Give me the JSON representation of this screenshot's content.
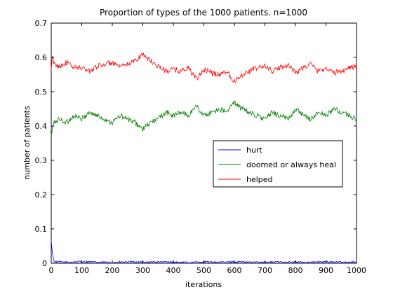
{
  "chart_data": {
    "type": "line",
    "title": "Proportion of types of the 1000 patients. n=1000",
    "xlabel": "iterations",
    "ylabel": "number of patients",
    "xlim": [
      0,
      1000
    ],
    "ylim": [
      0,
      0.7
    ],
    "xticks": [
      "0",
      "100",
      "200",
      "300",
      "400",
      "500",
      "600",
      "700",
      "800",
      "900",
      "1000"
    ],
    "yticks": [
      "0",
      "0.1",
      "0.2",
      "0.3",
      "0.4",
      "0.5",
      "0.6",
      "0.7"
    ],
    "grid": false,
    "legend_position": "center-right",
    "series": [
      {
        "name": "hurt",
        "color": "#0000ff",
        "x": [
          0,
          5,
          10,
          20,
          50,
          100,
          150,
          200,
          250,
          300,
          350,
          400,
          450,
          500,
          550,
          600,
          650,
          700,
          750,
          800,
          850,
          900,
          950,
          1000
        ],
        "values": [
          0.065,
          0.02,
          0.005,
          0.004,
          0.003,
          0.005,
          0.003,
          0.002,
          0.004,
          0.003,
          0.004,
          0.003,
          0.002,
          0.004,
          0.003,
          0.004,
          0.003,
          0.003,
          0.004,
          0.003,
          0.003,
          0.004,
          0.003,
          0.004
        ]
      },
      {
        "name": "doomed or always heal",
        "color": "#008000",
        "x": [
          0,
          3,
          10,
          25,
          50,
          75,
          100,
          125,
          150,
          175,
          200,
          225,
          250,
          275,
          300,
          325,
          350,
          375,
          400,
          425,
          450,
          475,
          500,
          525,
          550,
          575,
          600,
          625,
          650,
          675,
          700,
          725,
          750,
          775,
          800,
          825,
          850,
          875,
          900,
          925,
          950,
          975,
          1000
        ],
        "values": [
          0.37,
          0.39,
          0.41,
          0.42,
          0.41,
          0.43,
          0.42,
          0.44,
          0.43,
          0.42,
          0.41,
          0.43,
          0.42,
          0.41,
          0.39,
          0.41,
          0.42,
          0.44,
          0.43,
          0.44,
          0.43,
          0.46,
          0.43,
          0.44,
          0.45,
          0.44,
          0.47,
          0.45,
          0.44,
          0.43,
          0.42,
          0.44,
          0.43,
          0.42,
          0.45,
          0.43,
          0.42,
          0.44,
          0.43,
          0.45,
          0.44,
          0.43,
          0.42
        ]
      },
      {
        "name": "helped",
        "color": "#ff0000",
        "x": [
          0,
          3,
          10,
          25,
          50,
          75,
          100,
          125,
          150,
          175,
          200,
          225,
          250,
          275,
          300,
          325,
          350,
          375,
          400,
          425,
          450,
          475,
          500,
          525,
          550,
          575,
          600,
          625,
          650,
          675,
          700,
          725,
          750,
          775,
          800,
          825,
          850,
          875,
          900,
          925,
          950,
          975,
          1000
        ],
        "values": [
          0.56,
          0.6,
          0.58,
          0.575,
          0.585,
          0.57,
          0.57,
          0.56,
          0.575,
          0.58,
          0.585,
          0.57,
          0.58,
          0.59,
          0.61,
          0.59,
          0.575,
          0.56,
          0.565,
          0.56,
          0.57,
          0.535,
          0.565,
          0.555,
          0.55,
          0.56,
          0.53,
          0.55,
          0.56,
          0.57,
          0.575,
          0.56,
          0.57,
          0.58,
          0.555,
          0.57,
          0.58,
          0.56,
          0.57,
          0.555,
          0.56,
          0.57,
          0.575
        ]
      }
    ]
  }
}
